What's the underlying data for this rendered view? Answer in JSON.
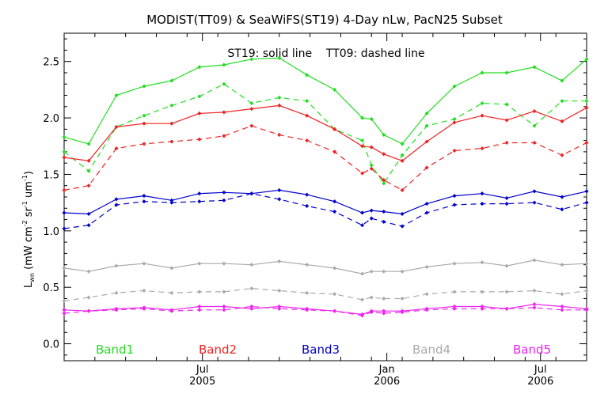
{
  "chart_data": {
    "type": "line",
    "title": "MODIST(TT09) & SeaWiFS(ST19) 4-Day nLw, PacN25 Subset",
    "annotation": "ST19: solid line    TT09: dashed line",
    "ylabel_main": "L",
    "ylabel_sub": "wn",
    "ylabel_rest": " (mW cm",
    "ylabel_exp1": "-2",
    "ylabel_mid": " sr",
    "ylabel_exp2": "-1",
    "ylabel_mid2": " um",
    "ylabel_exp3": "-1",
    "ylabel_end": ")",
    "ylim": [
      -0.15,
      2.75
    ],
    "yticks": [
      "0.0",
      "0.5",
      "1.0",
      "1.5",
      "2.0",
      "2.5"
    ],
    "xlim_months": [
      0,
      17
    ],
    "x_axis_ticks": [
      {
        "label": "Jul",
        "year": "2005",
        "m": 4.5
      },
      {
        "label": "Jan",
        "year": "2006",
        "m": 10.5
      },
      {
        "label": "Jul",
        "year": "2006",
        "m": 15.5
      }
    ],
    "x": [
      0.0,
      0.8,
      1.7,
      2.6,
      3.5,
      4.4,
      5.2,
      6.1,
      7.0,
      7.9,
      8.8,
      9.7,
      10.0,
      10.4,
      11.0,
      11.8,
      12.7,
      13.6,
      14.4,
      15.3,
      16.2,
      17.0
    ],
    "series": [
      {
        "band": "Band1",
        "color": "#22dd22",
        "style": "solid",
        "values": [
          1.83,
          1.77,
          2.2,
          2.28,
          2.33,
          2.45,
          2.47,
          2.52,
          2.53,
          2.38,
          2.25,
          2.0,
          1.99,
          1.85,
          1.77,
          2.04,
          2.28,
          2.4,
          2.4,
          2.45,
          2.33,
          2.52
        ]
      },
      {
        "band": "Band1",
        "color": "#22dd22",
        "style": "dashed",
        "values": [
          1.7,
          1.53,
          1.92,
          2.02,
          2.11,
          2.19,
          2.3,
          2.13,
          2.18,
          2.15,
          1.9,
          1.8,
          1.58,
          1.42,
          1.67,
          1.93,
          1.99,
          2.13,
          2.12,
          1.93,
          2.15,
          2.15
        ]
      },
      {
        "band": "Band2",
        "color": "#ee2222",
        "style": "solid",
        "values": [
          1.65,
          1.62,
          1.92,
          1.95,
          1.95,
          2.04,
          2.05,
          2.08,
          2.11,
          2.02,
          1.9,
          1.75,
          1.74,
          1.68,
          1.62,
          1.79,
          1.96,
          2.02,
          1.98,
          2.06,
          1.97,
          2.09
        ]
      },
      {
        "band": "Band2",
        "color": "#ee2222",
        "style": "dashed",
        "values": [
          1.36,
          1.4,
          1.73,
          1.77,
          1.79,
          1.81,
          1.84,
          1.93,
          1.85,
          1.8,
          1.7,
          1.51,
          1.55,
          1.45,
          1.36,
          1.56,
          1.71,
          1.73,
          1.78,
          1.78,
          1.67,
          1.78
        ]
      },
      {
        "band": "Band3",
        "color": "#0000cc",
        "style": "solid",
        "values": [
          1.16,
          1.15,
          1.28,
          1.31,
          1.27,
          1.33,
          1.34,
          1.33,
          1.36,
          1.32,
          1.26,
          1.16,
          1.18,
          1.17,
          1.15,
          1.24,
          1.31,
          1.33,
          1.29,
          1.35,
          1.3,
          1.35
        ]
      },
      {
        "band": "Band3",
        "color": "#0000cc",
        "style": "dashed",
        "values": [
          1.02,
          1.05,
          1.23,
          1.26,
          1.25,
          1.26,
          1.27,
          1.33,
          1.28,
          1.22,
          1.17,
          1.05,
          1.11,
          1.08,
          1.04,
          1.16,
          1.23,
          1.24,
          1.24,
          1.25,
          1.19,
          1.25
        ]
      },
      {
        "band": "Band4",
        "color": "#aaaaaa",
        "style": "solid",
        "values": [
          0.67,
          0.64,
          0.69,
          0.71,
          0.67,
          0.71,
          0.71,
          0.7,
          0.73,
          0.7,
          0.67,
          0.62,
          0.64,
          0.64,
          0.64,
          0.68,
          0.71,
          0.72,
          0.69,
          0.74,
          0.7,
          0.71
        ]
      },
      {
        "band": "Band4",
        "color": "#aaaaaa",
        "style": "dashed",
        "values": [
          0.38,
          0.41,
          0.45,
          0.47,
          0.45,
          0.46,
          0.46,
          0.49,
          0.47,
          0.45,
          0.44,
          0.39,
          0.41,
          0.4,
          0.4,
          0.44,
          0.46,
          0.46,
          0.46,
          0.47,
          0.44,
          0.47
        ]
      },
      {
        "band": "Band5",
        "color": "#ee22ee",
        "style": "solid",
        "values": [
          0.3,
          0.29,
          0.31,
          0.32,
          0.3,
          0.33,
          0.33,
          0.31,
          0.33,
          0.31,
          0.29,
          0.26,
          0.29,
          0.29,
          0.29,
          0.31,
          0.33,
          0.33,
          0.31,
          0.35,
          0.33,
          0.31
        ]
      },
      {
        "band": "Band5",
        "color": "#ee22ee",
        "style": "dashed",
        "values": [
          0.27,
          0.29,
          0.3,
          0.31,
          0.29,
          0.3,
          0.3,
          0.33,
          0.31,
          0.3,
          0.29,
          0.25,
          0.28,
          0.27,
          0.28,
          0.3,
          0.31,
          0.31,
          0.31,
          0.32,
          0.3,
          0.3
        ]
      }
    ],
    "legend": [
      {
        "label": "Band1",
        "color": "#22dd22"
      },
      {
        "label": "Band2",
        "color": "#ee2222"
      },
      {
        "label": "Band3",
        "color": "#0000cc"
      },
      {
        "label": "Band4",
        "color": "#aaaaaa"
      },
      {
        "label": "Band5",
        "color": "#ee22ee"
      }
    ],
    "legend_placement": "bottom",
    "grid": false
  }
}
